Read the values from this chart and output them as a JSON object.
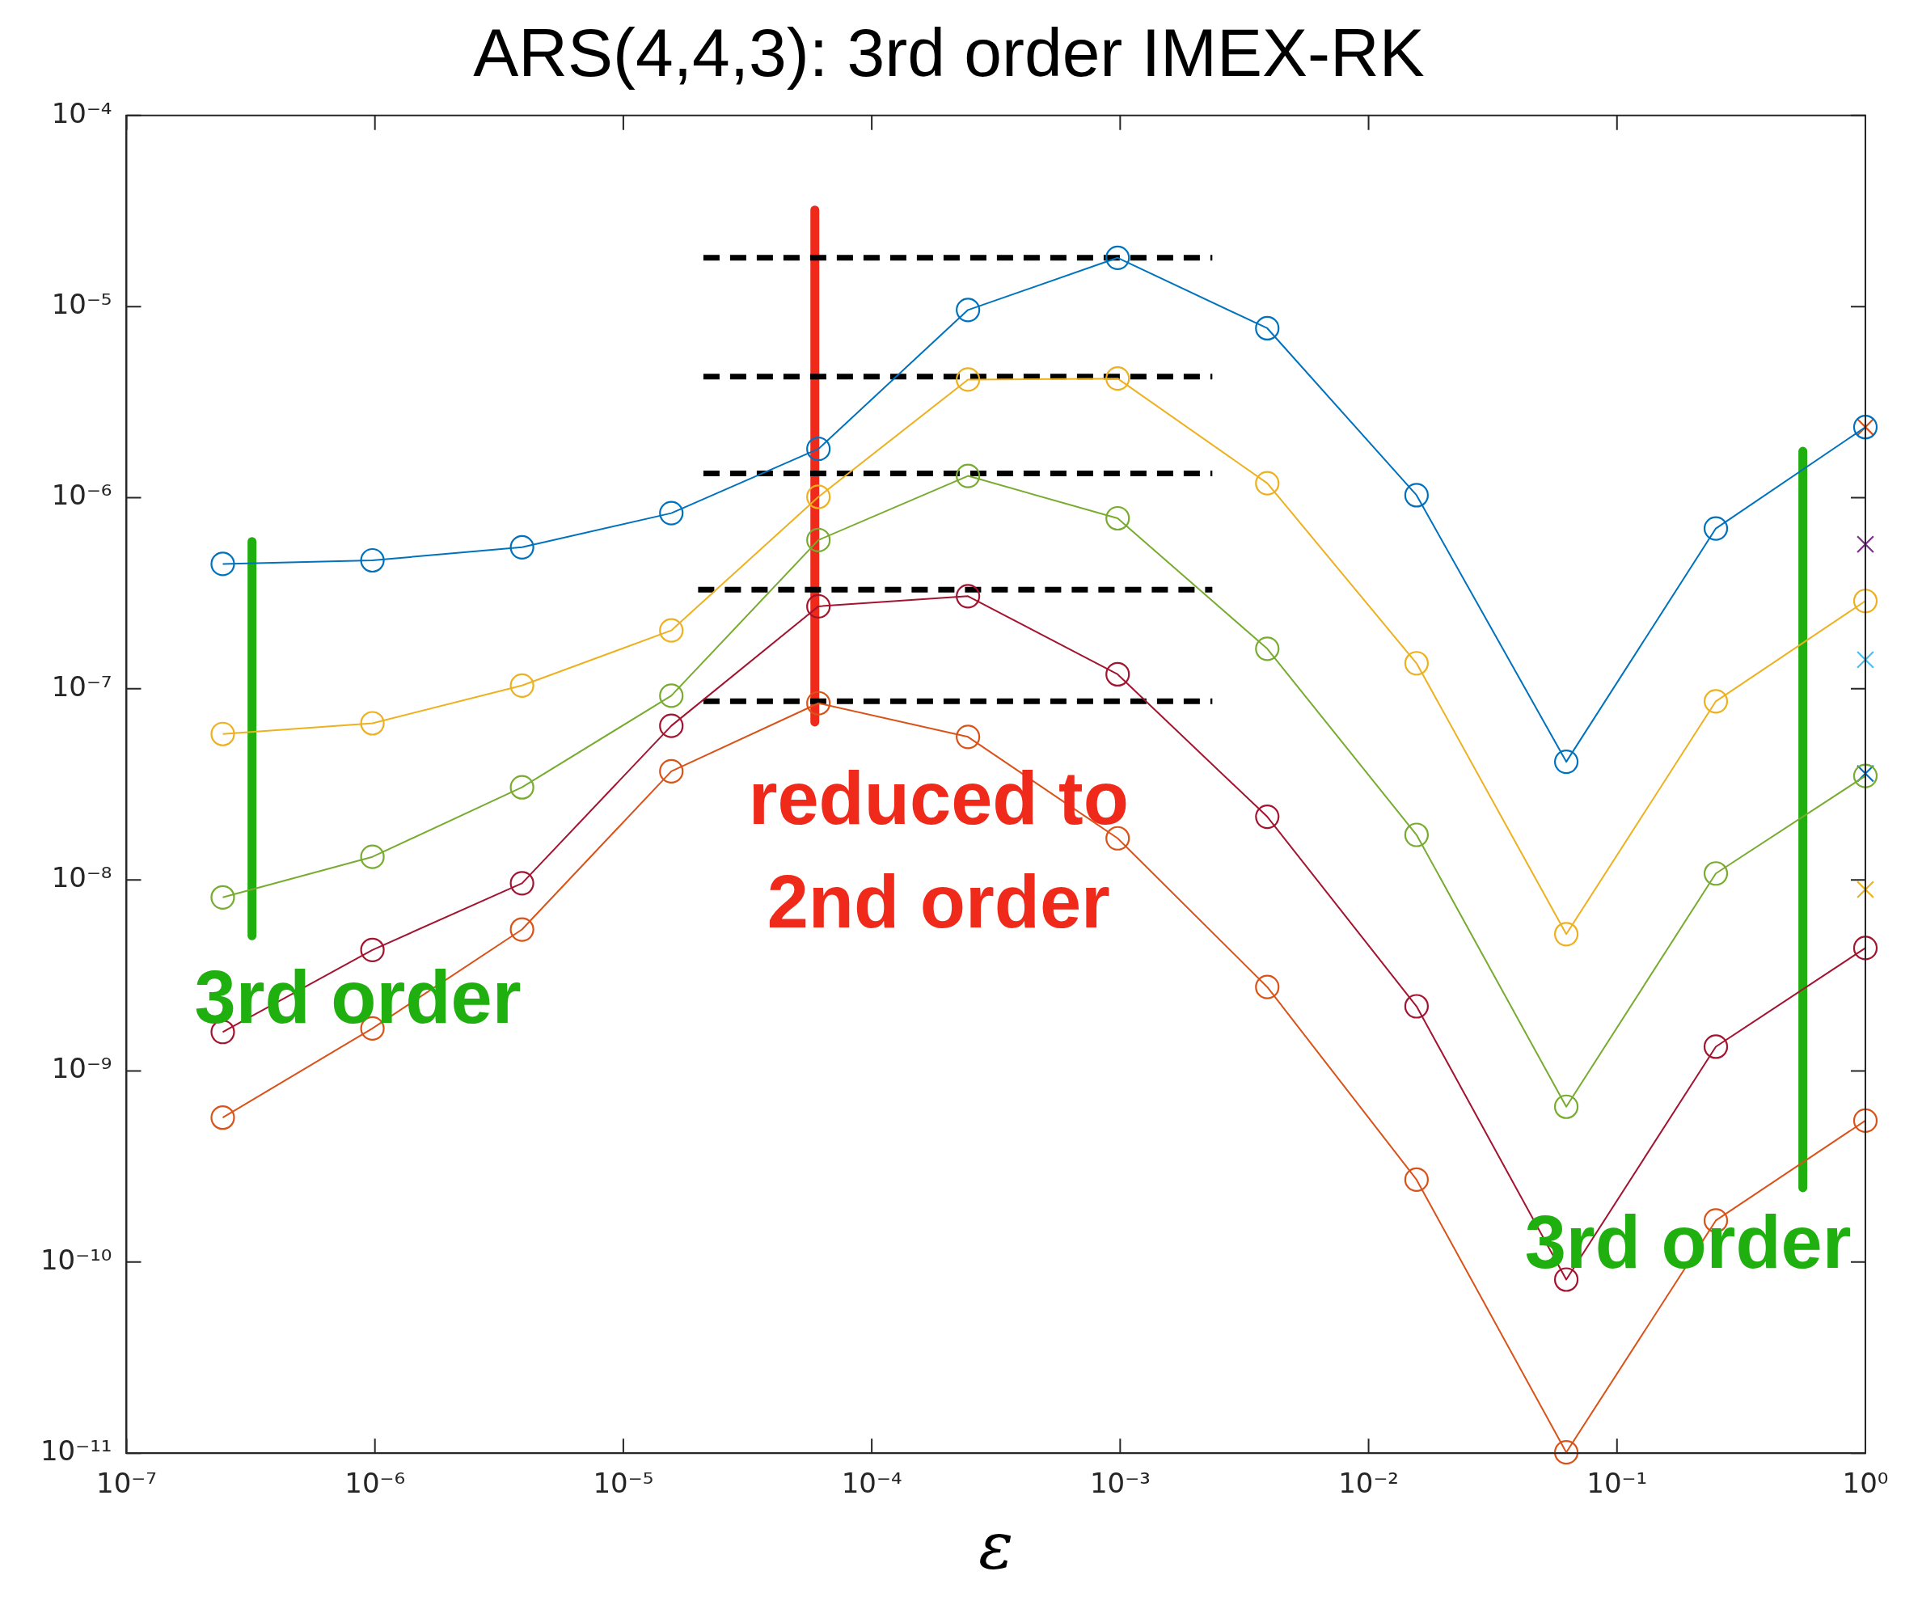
{
  "chart_data": {
    "type": "line",
    "title": "ARS(4,4,3): 3rd order IMEX-RK",
    "xlabel": "ε",
    "log": "xy",
    "legend": false,
    "marker": "circle",
    "line_style": "solid",
    "x": [
      2.44e-07,
      9.77e-07,
      3.91e-06,
      1.56e-05,
      6.1e-05,
      0.000244,
      0.000977,
      0.00391,
      0.0156,
      0.0625,
      0.25,
      1
    ],
    "series": [
      {
        "color": "#0072bd",
        "values": [
          4.5e-07,
          4.7e-07,
          5.5e-07,
          8.3e-07,
          1.8e-06,
          9.6e-06,
          1.8e-05,
          7.7e-06,
          1.03e-06,
          4.15e-08,
          6.9e-07,
          2.34e-06
        ]
      },
      {
        "color": "#edb120",
        "values": [
          5.8e-08,
          6.6e-08,
          1.04e-07,
          2.02e-07,
          1.01e-06,
          4.15e-06,
          4.2e-06,
          1.19e-06,
          1.36e-07,
          5.2e-09,
          8.6e-08,
          2.88e-07
        ]
      },
      {
        "color": "#77ac30",
        "values": [
          8.1e-09,
          1.32e-08,
          3.05e-08,
          9.2e-08,
          6e-07,
          1.3e-06,
          7.8e-07,
          1.62e-07,
          1.72e-08,
          6.5e-10,
          1.08e-08,
          3.5e-08
        ]
      },
      {
        "color": "#a2142f",
        "values": [
          1.6e-09,
          4.3e-09,
          9.6e-09,
          6.4e-08,
          2.7e-07,
          3.05e-07,
          1.19e-07,
          2.14e-08,
          2.18e-09,
          8.1e-11,
          1.34e-09,
          4.4e-09
        ]
      },
      {
        "color": "#d95319",
        "values": [
          5.7e-10,
          1.67e-09,
          5.5e-09,
          3.7e-08,
          8.4e-08,
          5.6e-08,
          1.65e-08,
          2.75e-09,
          2.7e-10,
          1.01e-11,
          1.65e-10,
          5.5e-10
        ]
      },
      {
        "type": "scatter",
        "marker": "cross",
        "x": [
          1
        ],
        "values": [
          2.34e-06
        ],
        "color": "#d95319"
      },
      {
        "type": "scatter",
        "marker": "cross",
        "x": [
          1
        ],
        "values": [
          5.7e-07
        ],
        "color": "#7e2f8e"
      },
      {
        "type": "scatter",
        "marker": "cross",
        "x": [
          1
        ],
        "values": [
          1.42e-07
        ],
        "color": "#4dbeee"
      },
      {
        "type": "scatter",
        "marker": "cross",
        "x": [
          1
        ],
        "values": [
          3.6e-08
        ],
        "color": "#0072bd"
      },
      {
        "type": "scatter",
        "marker": "cross",
        "x": [
          1
        ],
        "values": [
          8.9e-09
        ],
        "color": "#edb120"
      },
      {
        "type": "line",
        "marker": "none",
        "line_style": "dashed",
        "color": "#000000",
        "x": [
          2.1e-05,
          0.00235
        ],
        "values": [
          1.8e-05,
          1.8e-05
        ]
      },
      {
        "type": "line",
        "marker": "none",
        "line_style": "dashed",
        "color": "#000000",
        "x": [
          2.1e-05,
          0.00235
        ],
        "values": [
          4.3e-06,
          4.3e-06
        ]
      },
      {
        "type": "line",
        "marker": "none",
        "line_style": "dashed",
        "color": "#000000",
        "x": [
          2.1e-05,
          0.00235
        ],
        "values": [
          1.34e-06,
          1.34e-06
        ]
      },
      {
        "type": "line",
        "marker": "none",
        "line_style": "dashed",
        "color": "#000000",
        "x": [
          2e-05,
          0.00235
        ],
        "values": [
          3.3e-07,
          3.3e-07
        ]
      },
      {
        "type": "line",
        "marker": "none",
        "line_style": "dashed",
        "color": "#000000",
        "x": [
          2.1e-05,
          0.00235
        ],
        "values": [
          8.6e-08,
          8.6e-08
        ]
      },
      {
        "type": "line",
        "marker": "none",
        "line_style": "solid",
        "color": "#f02a1b",
        "x": [
          5.9e-05,
          5.9e-05
        ],
        "values": [
          3.2e-05,
          6.7e-08
        ]
      },
      {
        "type": "line",
        "marker": "none",
        "line_style": "solid",
        "color": "#1fb010",
        "x": [
          3.2e-07,
          3.2e-07
        ],
        "values": [
          5.9e-07,
          5.1e-09
        ]
      },
      {
        "type": "line",
        "marker": "none",
        "line_style": "solid",
        "color": "#1fb010",
        "x": [
          0.56,
          0.56
        ],
        "values": [
          1.75e-06,
          2.45e-10
        ]
      }
    ],
    "annotations": [
      "3rd order",
      "reduced to\n2nd order",
      "3rd order"
    ],
    "xlim": [
      1e-07,
      1
    ],
    "ylim": [
      1e-11,
      0.0001
    ],
    "xticks": [
      {
        "value": 1e-07,
        "label": "10⁻⁷"
      },
      {
        "value": 1e-06,
        "label": "10⁻⁶"
      },
      {
        "value": 1e-05,
        "label": "10⁻⁵"
      },
      {
        "value": 0.0001,
        "label": "10⁻⁴"
      },
      {
        "value": 0.001,
        "label": "10⁻³"
      },
      {
        "value": 0.01,
        "label": "10⁻²"
      },
      {
        "value": 0.1,
        "label": "10⁻¹"
      },
      {
        "value": 1,
        "label": "10⁰"
      }
    ],
    "yticks": [
      {
        "value": 1e-11,
        "label": "10⁻¹¹"
      },
      {
        "value": 1e-10,
        "label": "10⁻¹⁰"
      },
      {
        "value": 1e-09,
        "label": "10⁻⁹"
      },
      {
        "value": 1e-08,
        "label": "10⁻⁸"
      },
      {
        "value": 1e-07,
        "label": "10⁻⁷"
      },
      {
        "value": 1e-06,
        "label": "10⁻⁶"
      },
      {
        "value": 1e-05,
        "label": "10⁻⁵"
      },
      {
        "value": 0.0001,
        "label": "10⁻⁴"
      }
    ]
  }
}
